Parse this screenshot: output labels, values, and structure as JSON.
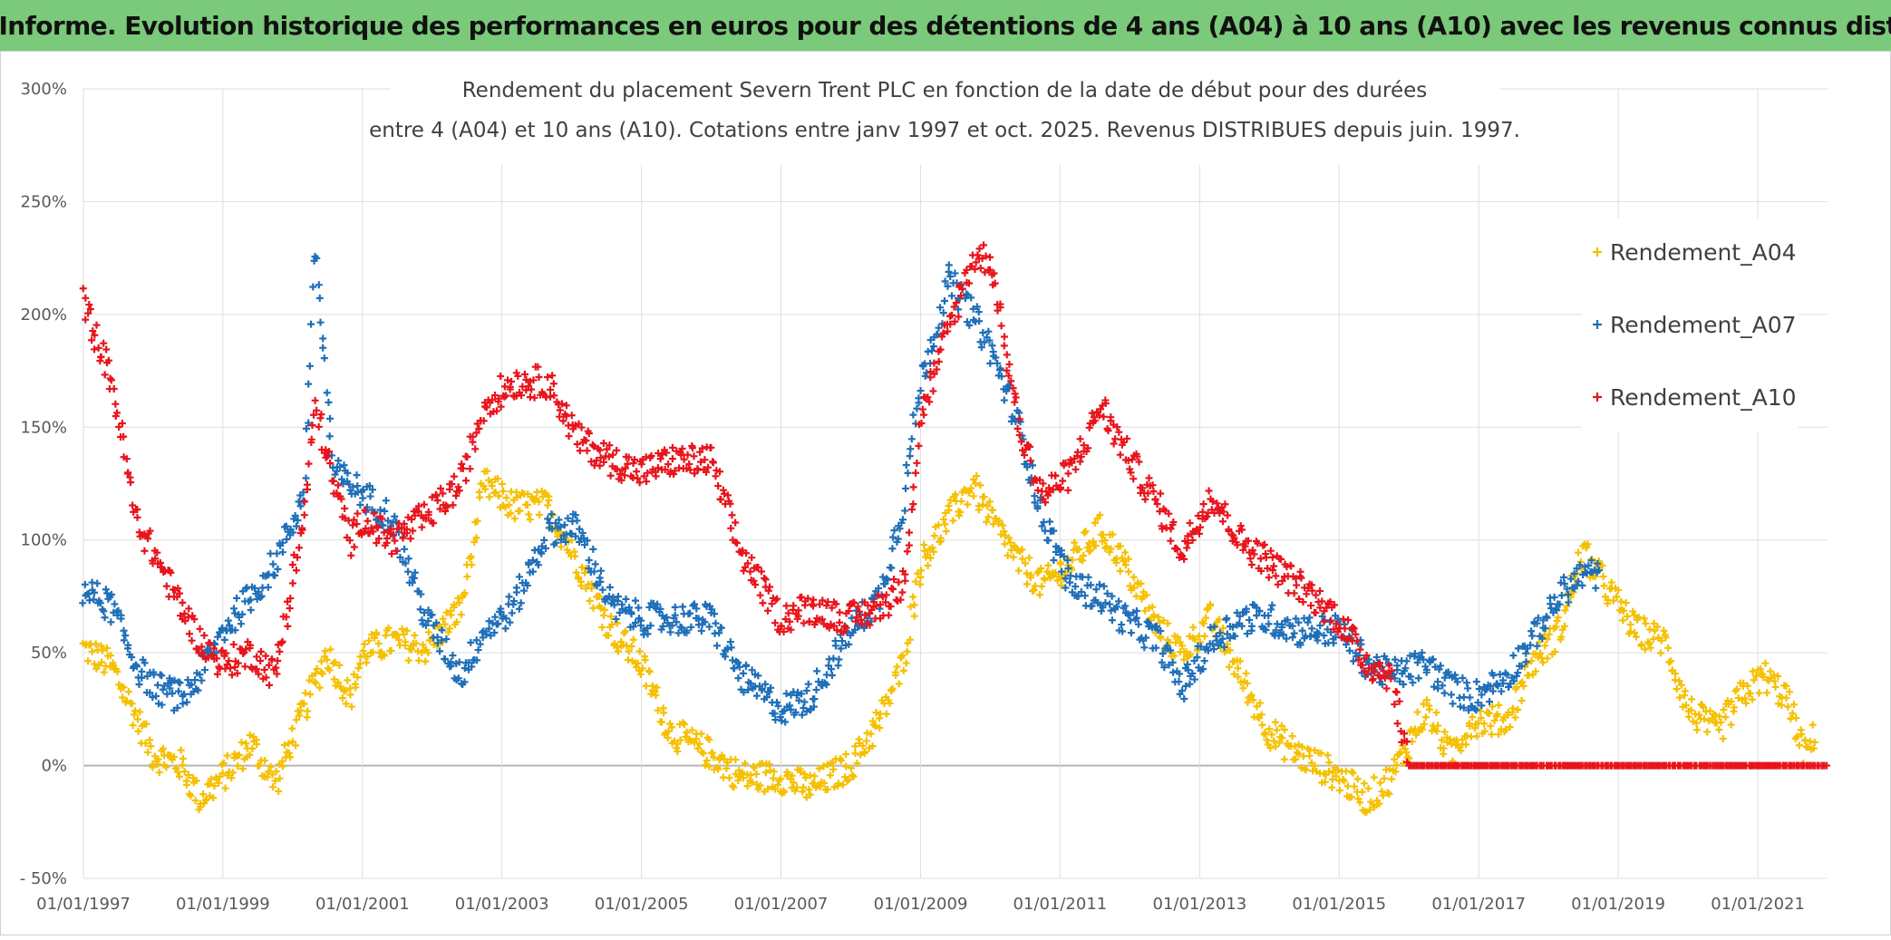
{
  "banner": {
    "title": "ADAM Informe. Evolution historique des performances en euros pour des détentions de 4 ans (A04) à 10 ans (A10) avec les revenus connus distribués"
  },
  "chart_data": {
    "type": "scatter",
    "title_line1": "Rendement du placement Severn Trent PLC en fonction de la date de début pour des durées",
    "title_line2": "entre 4 (A04) et 10 ans (A10). Cotations entre janv 1997 et oct. 2025. Revenus DISTRIBUES depuis juin. 1997.",
    "xlabel": "",
    "ylabel": "",
    "x_range": [
      "1997-01-01",
      "2022-01-01"
    ],
    "ylim": [
      -50,
      300
    ],
    "y_ticks": [
      -50,
      0,
      50,
      100,
      150,
      200,
      250,
      300
    ],
    "y_tick_labels": [
      "- 50%",
      "0%",
      "50%",
      "100%",
      "150%",
      "200%",
      "250%",
      "300%"
    ],
    "x_tick_labels": [
      "01/01/1997",
      "01/01/1999",
      "01/01/2001",
      "01/01/2003",
      "01/01/2005",
      "01/01/2007",
      "01/01/2009",
      "01/01/2011",
      "01/01/2013",
      "01/01/2015",
      "01/01/2017",
      "01/01/2019",
      "01/01/2021"
    ],
    "grid": true,
    "legend_position": "right",
    "marker": "+",
    "series": [
      {
        "name": "Rendement_A04",
        "color": "#f5c000",
        "points": [
          [
            "1997-01",
            52
          ],
          [
            "1997-06",
            44
          ],
          [
            "1997-10",
            22
          ],
          [
            "1998-01",
            5
          ],
          [
            "1998-06",
            0
          ],
          [
            "1998-09",
            -15
          ],
          [
            "1999-01",
            -5
          ],
          [
            "1999-06",
            10
          ],
          [
            "1999-10",
            -8
          ],
          [
            "2000-03",
            25
          ],
          [
            "2000-07",
            50
          ],
          [
            "2000-11",
            30
          ],
          [
            "2001-01",
            50
          ],
          [
            "2001-06",
            55
          ],
          [
            "2001-12",
            52
          ],
          [
            "2002-06",
            70
          ],
          [
            "2002-10",
            125
          ],
          [
            "2003-03",
            115
          ],
          [
            "2003-09",
            115
          ],
          [
            "2004-02",
            90
          ],
          [
            "2004-08",
            60
          ],
          [
            "2005-01",
            45
          ],
          [
            "2005-06",
            15
          ],
          [
            "2006-01",
            5
          ],
          [
            "2006-06",
            -5
          ],
          [
            "2007-01",
            -5
          ],
          [
            "2007-06",
            -10
          ],
          [
            "2008-01",
            0
          ],
          [
            "2008-06",
            20
          ],
          [
            "2008-10",
            45
          ],
          [
            "2009-01",
            90
          ],
          [
            "2009-06",
            110
          ],
          [
            "2009-10",
            125
          ],
          [
            "2010-01",
            110
          ],
          [
            "2010-06",
            90
          ],
          [
            "2010-10",
            80
          ],
          [
            "2011-03",
            90
          ],
          [
            "2011-08",
            105
          ],
          [
            "2011-12",
            90
          ],
          [
            "2012-06",
            60
          ],
          [
            "2012-10",
            50
          ],
          [
            "2013-03",
            65
          ],
          [
            "2013-08",
            40
          ],
          [
            "2014-01",
            15
          ],
          [
            "2014-06",
            5
          ],
          [
            "2015-01",
            -5
          ],
          [
            "2015-06",
            -15
          ],
          [
            "2015-10",
            -5
          ],
          [
            "2016-04",
            25
          ],
          [
            "2016-08",
            5
          ],
          [
            "2016-12",
            20
          ],
          [
            "2017-06",
            20
          ],
          [
            "2017-10",
            45
          ],
          [
            "2018-03",
            60
          ],
          [
            "2018-07",
            95
          ],
          [
            "2018-12",
            75
          ],
          [
            "2019-04",
            60
          ],
          [
            "2019-09",
            55
          ],
          [
            "2020-01",
            25
          ],
          [
            "2020-06",
            15
          ],
          [
            "2020-10",
            30
          ],
          [
            "2021-02",
            40
          ],
          [
            "2021-06",
            30
          ],
          [
            "2021-09",
            5
          ],
          [
            "2021-11",
            15
          ]
        ]
      },
      {
        "name": "Rendement_A07",
        "color": "#1f6fb8",
        "points": [
          [
            "1997-01",
            78
          ],
          [
            "1997-06",
            70
          ],
          [
            "1997-10",
            45
          ],
          [
            "1998-01",
            35
          ],
          [
            "1998-06",
            30
          ],
          [
            "1998-09",
            40
          ],
          [
            "1999-01",
            60
          ],
          [
            "1999-06",
            75
          ],
          [
            "1999-10",
            90
          ],
          [
            "2000-03",
            120
          ],
          [
            "2000-05",
            230
          ],
          [
            "2000-08",
            130
          ],
          [
            "2000-11",
            125
          ],
          [
            "2001-01",
            120
          ],
          [
            "2001-06",
            110
          ],
          [
            "2001-12",
            65
          ],
          [
            "2002-06",
            40
          ],
          [
            "2002-10",
            60
          ],
          [
            "2003-03",
            70
          ],
          [
            "2003-09",
            105
          ],
          [
            "2004-02",
            105
          ],
          [
            "2004-08",
            70
          ],
          [
            "2005-01",
            65
          ],
          [
            "2005-06",
            65
          ],
          [
            "2006-01",
            65
          ],
          [
            "2006-06",
            40
          ],
          [
            "2007-01",
            25
          ],
          [
            "2007-06",
            30
          ],
          [
            "2008-01",
            60
          ],
          [
            "2008-06",
            75
          ],
          [
            "2008-10",
            115
          ],
          [
            "2009-01",
            170
          ],
          [
            "2009-06",
            215
          ],
          [
            "2009-10",
            200
          ],
          [
            "2010-01",
            185
          ],
          [
            "2010-06",
            150
          ],
          [
            "2010-10",
            110
          ],
          [
            "2011-03",
            80
          ],
          [
            "2011-08",
            75
          ],
          [
            "2011-12",
            65
          ],
          [
            "2012-06",
            55
          ],
          [
            "2012-10",
            35
          ],
          [
            "2013-03",
            55
          ],
          [
            "2013-08",
            65
          ],
          [
            "2014-01",
            65
          ],
          [
            "2014-06",
            60
          ],
          [
            "2015-01",
            60
          ],
          [
            "2015-06",
            45
          ],
          [
            "2015-10",
            40
          ],
          [
            "2016-04",
            45
          ],
          [
            "2016-08",
            35
          ],
          [
            "2016-12",
            30
          ],
          [
            "2017-06",
            40
          ],
          [
            "2017-10",
            55
          ],
          [
            "2018-03",
            75
          ],
          [
            "2018-07",
            85
          ],
          [
            "2018-10",
            85
          ]
        ]
      },
      {
        "name": "Rendement_A10",
        "color": "#e8141c",
        "points": [
          [
            "1997-01",
            205
          ],
          [
            "1997-06",
            170
          ],
          [
            "1997-10",
            110
          ],
          [
            "1998-01",
            95
          ],
          [
            "1998-06",
            70
          ],
          [
            "1998-09",
            55
          ],
          [
            "1999-01",
            45
          ],
          [
            "1999-06",
            50
          ],
          [
            "1999-10",
            40
          ],
          [
            "2000-03",
            110
          ],
          [
            "2000-05",
            160
          ],
          [
            "2000-08",
            125
          ],
          [
            "2000-11",
            100
          ],
          [
            "2001-01",
            110
          ],
          [
            "2001-06",
            100
          ],
          [
            "2001-12",
            110
          ],
          [
            "2002-06",
            125
          ],
          [
            "2002-10",
            160
          ],
          [
            "2003-03",
            170
          ],
          [
            "2003-09",
            170
          ],
          [
            "2004-02",
            145
          ],
          [
            "2004-08",
            135
          ],
          [
            "2005-01",
            130
          ],
          [
            "2005-06",
            135
          ],
          [
            "2006-01",
            135
          ],
          [
            "2006-06",
            95
          ],
          [
            "2007-01",
            65
          ],
          [
            "2007-06",
            70
          ],
          [
            "2008-01",
            65
          ],
          [
            "2008-06",
            70
          ],
          [
            "2008-10",
            80
          ],
          [
            "2009-01",
            155
          ],
          [
            "2009-06",
            195
          ],
          [
            "2009-10",
            225
          ],
          [
            "2010-01",
            225
          ],
          [
            "2010-06",
            150
          ],
          [
            "2010-10",
            120
          ],
          [
            "2011-03",
            130
          ],
          [
            "2011-08",
            160
          ],
          [
            "2011-12",
            140
          ],
          [
            "2012-06",
            115
          ],
          [
            "2012-10",
            95
          ],
          [
            "2013-03",
            120
          ],
          [
            "2013-08",
            100
          ],
          [
            "2014-01",
            90
          ],
          [
            "2014-06",
            80
          ],
          [
            "2015-01",
            65
          ],
          [
            "2015-06",
            45
          ],
          [
            "2015-10",
            40
          ],
          [
            "2016-01",
            0
          ],
          [
            "2017-01",
            0
          ],
          [
            "2018-01",
            0
          ],
          [
            "2019-01",
            0
          ],
          [
            "2020-01",
            0
          ],
          [
            "2021-01",
            0
          ],
          [
            "2022-01",
            0
          ]
        ]
      }
    ]
  }
}
